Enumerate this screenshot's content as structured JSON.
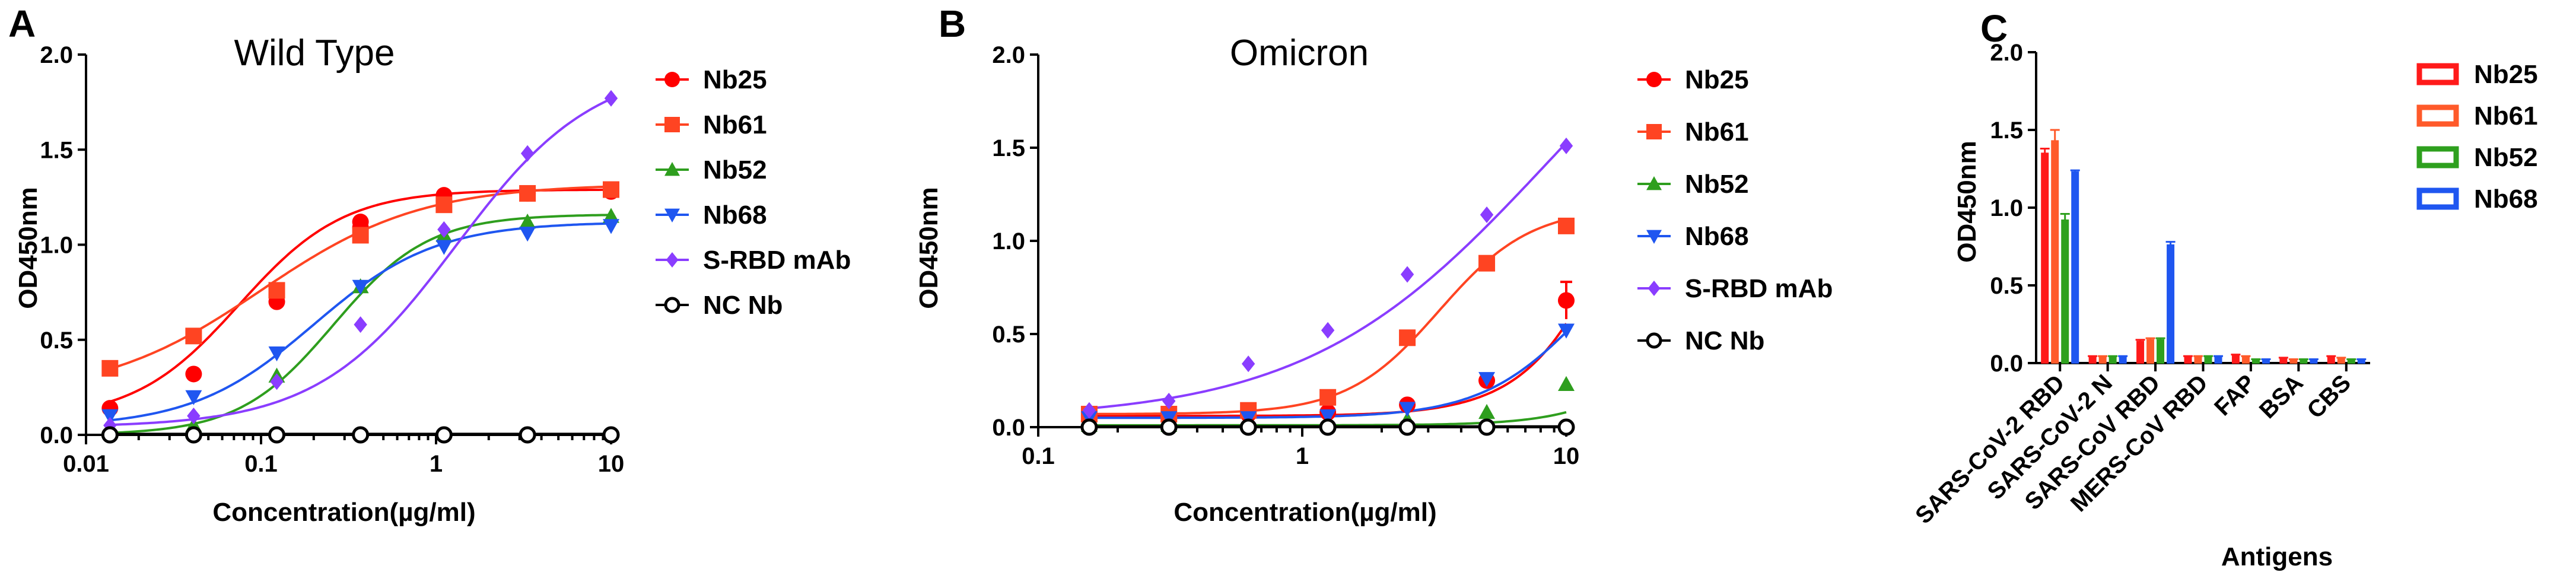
{
  "panels": {
    "A": {
      "letter": "A"
    },
    "B": {
      "letter": "B"
    },
    "C": {
      "letter": "C"
    }
  },
  "chart_data": [
    {
      "id": "A",
      "type": "line",
      "xscale": "log",
      "title": "Wild Type",
      "xlabel": "Concentration(µg/ml)",
      "ylabel": "OD450nm",
      "xlim": [
        0.01,
        10
      ],
      "ylim": [
        0,
        2.0
      ],
      "xticks": [
        {
          "v": 0.01,
          "label": "0.01"
        },
        {
          "v": 0.1,
          "label": "0.1"
        },
        {
          "v": 1,
          "label": "1"
        },
        {
          "v": 10,
          "label": "10"
        }
      ],
      "yticks": [
        {
          "v": 0,
          "label": "0.0"
        },
        {
          "v": 0.5,
          "label": "0.5"
        },
        {
          "v": 1.0,
          "label": "1.0"
        },
        {
          "v": 1.5,
          "label": "1.5"
        },
        {
          "v": 2.0,
          "label": "2.0"
        }
      ],
      "x": [
        0.0137,
        0.0412,
        0.123,
        0.37,
        1.11,
        3.33,
        10
      ],
      "series": [
        {
          "name": "Nb25",
          "color": "#ff0000",
          "marker": "circle",
          "values": [
            0.14,
            0.32,
            0.7,
            1.09,
            1.23,
            1.27,
            1.28
          ],
          "values2": [
            null,
            null,
            0.74,
            1.12,
            1.26,
            null,
            null
          ]
        },
        {
          "name": "Nb61",
          "color": "#ff4422",
          "marker": "square",
          "values": [
            0.35,
            0.52,
            0.76,
            1.05,
            1.21,
            1.27,
            1.29
          ]
        },
        {
          "name": "Nb52",
          "color": "#2e9e1e",
          "marker": "triangle",
          "values": [
            0.02,
            0.05,
            0.31,
            0.78,
            1.05,
            1.12,
            1.15
          ]
        },
        {
          "name": "Nb68",
          "color": "#1f56f0",
          "marker": "triangle-down",
          "values": [
            0.1,
            0.2,
            0.43,
            0.78,
            0.99,
            1.06,
            1.1
          ]
        },
        {
          "name": "S-RBD mAb",
          "color": "#8a3dff",
          "marker": "diamond",
          "values": [
            0.05,
            0.1,
            0.28,
            0.58,
            1.08,
            1.48,
            1.77
          ]
        },
        {
          "name": "NC Nb",
          "color": "#000000",
          "marker": "open-circle",
          "values": [
            0.0,
            0.0,
            0.0,
            0.0,
            0.0,
            0.0,
            0.0
          ]
        }
      ],
      "curves": [
        {
          "series": "Nb25",
          "min": 0.08,
          "max": 1.29,
          "ec50": 0.075,
          "hill": 1.45
        },
        {
          "series": "Nb61",
          "min": 0.2,
          "max": 1.32,
          "ec50": 0.1,
          "hill": 0.95
        },
        {
          "series": "Nb52",
          "min": 0.0,
          "max": 1.16,
          "ec50": 0.26,
          "hill": 1.6
        },
        {
          "series": "Nb68",
          "min": 0.04,
          "max": 1.12,
          "ec50": 0.2,
          "hill": 1.25
        },
        {
          "series": "S-RBD mAb",
          "min": 0.04,
          "max": 1.95,
          "ec50": 1.3,
          "hill": 1.1
        },
        {
          "series": "NC Nb",
          "min": 0.005,
          "max": 0.005,
          "ec50": 1,
          "hill": 1
        }
      ]
    },
    {
      "id": "B",
      "type": "line",
      "xscale": "log",
      "title": "Omicron",
      "xlabel": "Concentration(µg/ml)",
      "ylabel": "OD450nm",
      "xlim": [
        0.1,
        10
      ],
      "ylim": [
        0,
        2.0
      ],
      "xticks": [
        {
          "v": 0.1,
          "label": "0.1"
        },
        {
          "v": 1,
          "label": "1"
        },
        {
          "v": 10,
          "label": "10"
        }
      ],
      "yticks": [
        {
          "v": 0,
          "label": "0.0"
        },
        {
          "v": 0.5,
          "label": "0.5"
        },
        {
          "v": 1.0,
          "label": "1.0"
        },
        {
          "v": 1.5,
          "label": "1.5"
        },
        {
          "v": 2.0,
          "label": "2.0"
        }
      ],
      "x": [
        0.156,
        0.3125,
        0.625,
        1.25,
        2.5,
        5,
        10
      ],
      "series": [
        {
          "name": "Nb25",
          "color": "#ff0000",
          "marker": "circle",
          "values": [
            0.06,
            0.06,
            0.07,
            0.08,
            0.12,
            0.25,
            0.68
          ],
          "err": [
            0,
            0,
            0,
            0,
            0,
            0,
            0.1
          ]
        },
        {
          "name": "Nb61",
          "color": "#ff4422",
          "marker": "square",
          "values": [
            0.07,
            0.07,
            0.09,
            0.16,
            0.48,
            0.88,
            1.08
          ]
        },
        {
          "name": "Nb52",
          "color": "#2e9e1e",
          "marker": "triangle",
          "values": [
            0.01,
            0.01,
            0.02,
            0.03,
            0.04,
            0.08,
            0.23
          ]
        },
        {
          "name": "Nb68",
          "color": "#1f56f0",
          "marker": "triangle-down",
          "values": [
            0.05,
            0.05,
            0.05,
            0.06,
            0.1,
            0.26,
            0.52
          ]
        },
        {
          "name": "S-RBD mAb",
          "color": "#8a3dff",
          "marker": "diamond",
          "values": [
            0.09,
            0.14,
            0.34,
            0.52,
            0.82,
            1.14,
            1.51
          ]
        },
        {
          "name": "NC Nb",
          "color": "#000000",
          "marker": "open-circle",
          "values": [
            0.0,
            0.0,
            0.0,
            0.0,
            0.0,
            0.0,
            0.0
          ]
        }
      ],
      "curves": [
        {
          "series": "Nb25",
          "min": 0.06,
          "max": 3.0,
          "ec50": 20,
          "hill": 2.3
        },
        {
          "series": "Nb61",
          "min": 0.07,
          "max": 1.18,
          "ec50": 3.3,
          "hill": 2.5
        },
        {
          "series": "Nb52",
          "min": 0.01,
          "max": 1.5,
          "ec50": 35,
          "hill": 2.4
        },
        {
          "series": "Nb68",
          "min": 0.05,
          "max": 1.2,
          "ec50": 12,
          "hill": 2.2
        },
        {
          "series": "S-RBD mAb",
          "min": 0.04,
          "max": 2.8,
          "ec50": 8.5,
          "hill": 0.95
        },
        {
          "series": "NC Nb",
          "min": 0.004,
          "max": 0.004,
          "ec50": 1,
          "hill": 1
        }
      ]
    },
    {
      "id": "C",
      "type": "bar",
      "title": "",
      "xlabel": "Antigens",
      "ylabel": "OD450nm",
      "ylim": [
        0,
        2.0
      ],
      "yticks": [
        {
          "v": 0,
          "label": "0.0"
        },
        {
          "v": 0.5,
          "label": "0.5"
        },
        {
          "v": 1.0,
          "label": "1.0"
        },
        {
          "v": 1.5,
          "label": "1.5"
        },
        {
          "v": 2.0,
          "label": "2.0"
        }
      ],
      "categories": [
        "SARS-CoV-2 RBD",
        "SARS-CoV-2 N",
        "SARS-CoV RBD",
        "MERS-CoV RBD",
        "FAP",
        "BSA",
        "CBS"
      ],
      "series": [
        {
          "name": "Nb25",
          "color": "#ff1a1a",
          "values": [
            1.35,
            0.04,
            0.14,
            0.04,
            0.05,
            0.03,
            0.04
          ],
          "err": [
            0.03,
            0.005,
            0.01,
            0.005,
            0.005,
            0.005,
            0.005
          ]
        },
        {
          "name": "Nb61",
          "color": "#ff5a2a",
          "values": [
            1.43,
            0.04,
            0.15,
            0.04,
            0.04,
            0.02,
            0.03
          ],
          "err": [
            0.07,
            0.005,
            0.01,
            0.005,
            0.005,
            0.005,
            0.005
          ]
        },
        {
          "name": "Nb52",
          "color": "#2ea01e",
          "values": [
            0.92,
            0.04,
            0.15,
            0.04,
            0.02,
            0.02,
            0.02
          ],
          "err": [
            0.04,
            0.005,
            0.01,
            0.005,
            0.005,
            0.005,
            0.005
          ]
        },
        {
          "name": "Nb68",
          "color": "#1f56f0",
          "values": [
            1.23,
            0.04,
            0.76,
            0.04,
            0.02,
            0.02,
            0.02
          ],
          "err": [
            0.01,
            0.005,
            0.02,
            0.005,
            0.005,
            0.005,
            0.005
          ]
        }
      ]
    }
  ]
}
